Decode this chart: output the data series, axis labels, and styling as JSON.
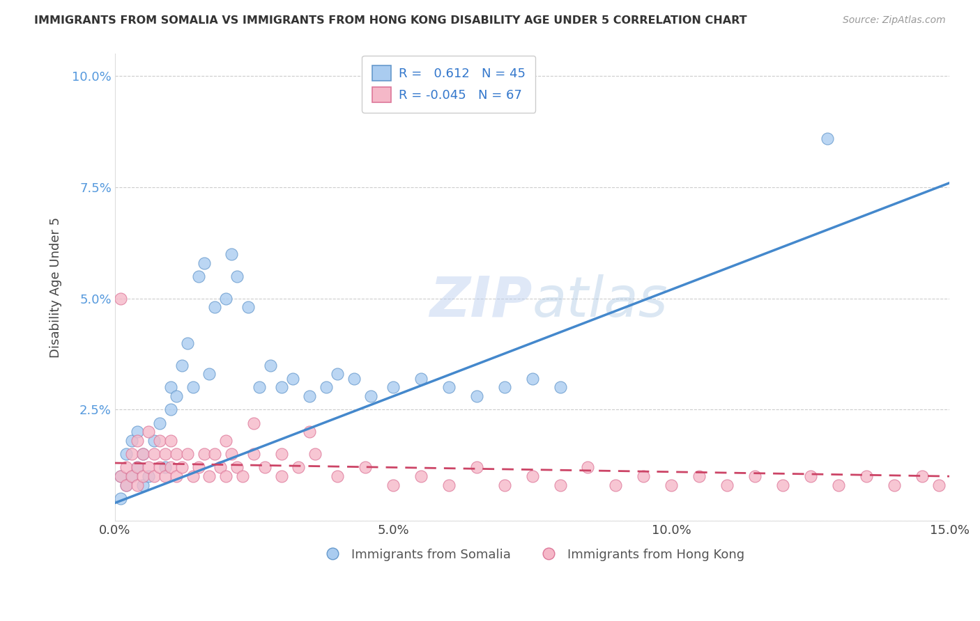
{
  "title": "IMMIGRANTS FROM SOMALIA VS IMMIGRANTS FROM HONG KONG DISABILITY AGE UNDER 5 CORRELATION CHART",
  "source": "Source: ZipAtlas.com",
  "ylabel": "Disability Age Under 5",
  "xlabel_somalia": "Immigrants from Somalia",
  "xlabel_hongkong": "Immigrants from Hong Kong",
  "xlim": [
    0,
    0.15
  ],
  "ylim": [
    0,
    0.105
  ],
  "yticks": [
    0,
    0.025,
    0.05,
    0.075,
    0.1
  ],
  "ytick_labels": [
    "",
    "2.5%",
    "5.0%",
    "7.5%",
    "10.0%"
  ],
  "xticks": [
    0,
    0.05,
    0.1,
    0.15
  ],
  "xtick_labels": [
    "0.0%",
    "5.0%",
    "10.0%",
    "15.0%"
  ],
  "somalia_color": "#aaccf0",
  "somalia_edge": "#6699cc",
  "hongkong_color": "#f5b8c8",
  "hongkong_edge": "#dd7799",
  "trendline_somalia_color": "#4488cc",
  "trendline_hongkong_color": "#cc4466",
  "R_somalia": 0.612,
  "N_somalia": 45,
  "R_hongkong": -0.045,
  "N_hongkong": 67,
  "watermark": "ZIPatlas",
  "background_color": "#ffffff",
  "grid_color": "#cccccc",
  "somalia_points_x": [
    0.001,
    0.001,
    0.002,
    0.002,
    0.003,
    0.003,
    0.004,
    0.004,
    0.005,
    0.005,
    0.006,
    0.007,
    0.008,
    0.009,
    0.01,
    0.01,
    0.011,
    0.012,
    0.013,
    0.014,
    0.015,
    0.016,
    0.017,
    0.018,
    0.02,
    0.021,
    0.022,
    0.024,
    0.026,
    0.028,
    0.03,
    0.032,
    0.035,
    0.038,
    0.04,
    0.043,
    0.046,
    0.05,
    0.055,
    0.06,
    0.065,
    0.07,
    0.075,
    0.08,
    0.128
  ],
  "somalia_points_y": [
    0.005,
    0.01,
    0.008,
    0.015,
    0.01,
    0.018,
    0.012,
    0.02,
    0.008,
    0.015,
    0.01,
    0.018,
    0.022,
    0.012,
    0.025,
    0.03,
    0.028,
    0.035,
    0.04,
    0.03,
    0.055,
    0.058,
    0.033,
    0.048,
    0.05,
    0.06,
    0.055,
    0.048,
    0.03,
    0.035,
    0.03,
    0.032,
    0.028,
    0.03,
    0.033,
    0.032,
    0.028,
    0.03,
    0.032,
    0.03,
    0.028,
    0.03,
    0.032,
    0.03,
    0.086
  ],
  "hongkong_points_x": [
    0.001,
    0.001,
    0.002,
    0.002,
    0.003,
    0.003,
    0.004,
    0.004,
    0.004,
    0.005,
    0.005,
    0.006,
    0.006,
    0.007,
    0.007,
    0.008,
    0.008,
    0.009,
    0.009,
    0.01,
    0.01,
    0.011,
    0.011,
    0.012,
    0.013,
    0.014,
    0.015,
    0.016,
    0.017,
    0.018,
    0.019,
    0.02,
    0.021,
    0.022,
    0.023,
    0.025,
    0.027,
    0.03,
    0.033,
    0.036,
    0.04,
    0.045,
    0.05,
    0.055,
    0.06,
    0.065,
    0.07,
    0.075,
    0.08,
    0.085,
    0.09,
    0.095,
    0.1,
    0.105,
    0.11,
    0.115,
    0.12,
    0.125,
    0.13,
    0.135,
    0.14,
    0.145,
    0.148,
    0.02,
    0.025,
    0.03,
    0.035
  ],
  "hongkong_points_y": [
    0.05,
    0.01,
    0.008,
    0.012,
    0.01,
    0.015,
    0.008,
    0.012,
    0.018,
    0.01,
    0.015,
    0.012,
    0.02,
    0.01,
    0.015,
    0.012,
    0.018,
    0.01,
    0.015,
    0.012,
    0.018,
    0.01,
    0.015,
    0.012,
    0.015,
    0.01,
    0.012,
    0.015,
    0.01,
    0.015,
    0.012,
    0.01,
    0.015,
    0.012,
    0.01,
    0.015,
    0.012,
    0.01,
    0.012,
    0.015,
    0.01,
    0.012,
    0.008,
    0.01,
    0.008,
    0.012,
    0.008,
    0.01,
    0.008,
    0.012,
    0.008,
    0.01,
    0.008,
    0.01,
    0.008,
    0.01,
    0.008,
    0.01,
    0.008,
    0.01,
    0.008,
    0.01,
    0.008,
    0.018,
    0.022,
    0.015,
    0.02
  ],
  "trendline_somalia_x0": 0.0,
  "trendline_somalia_y0": 0.004,
  "trendline_somalia_x1": 0.15,
  "trendline_somalia_y1": 0.076,
  "trendline_hongkong_x0": 0.0,
  "trendline_hongkong_y0": 0.013,
  "trendline_hongkong_x1": 0.15,
  "trendline_hongkong_y1": 0.01
}
